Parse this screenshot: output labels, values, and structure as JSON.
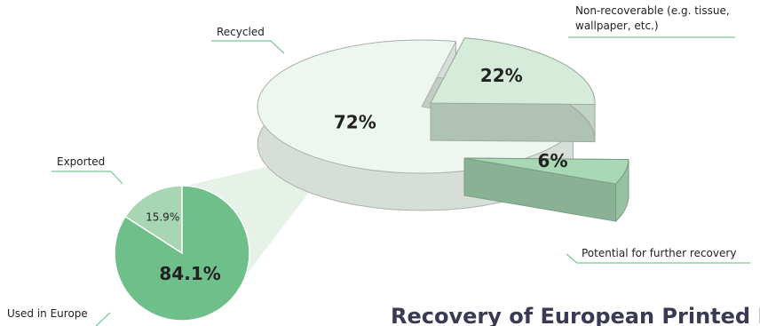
{
  "chart_data": [
    {
      "type": "pie3d",
      "title": "Recovery of European Printed Paper",
      "series": [
        {
          "name": "Recycled",
          "color": "#eef7ef"
        },
        {
          "name": "Non-recoverable (e.g. tissue, wallpaper, etc.)",
          "color": "#d6ecda"
        },
        {
          "name": "Potential for further recovery",
          "color": "#a8d8b4"
        }
      ],
      "values": [
        72,
        22,
        6
      ],
      "value_labels": [
        "72%",
        "22%",
        "6%"
      ]
    },
    {
      "type": "pie",
      "series": [
        {
          "name": "Exported",
          "color": "#a8d6b3"
        },
        {
          "name": "Used in Europe",
          "color": "#6fbf8a"
        }
      ],
      "values": [
        15.9,
        84.1
      ],
      "value_labels": [
        "15.9%",
        "84.1%"
      ]
    }
  ]
}
